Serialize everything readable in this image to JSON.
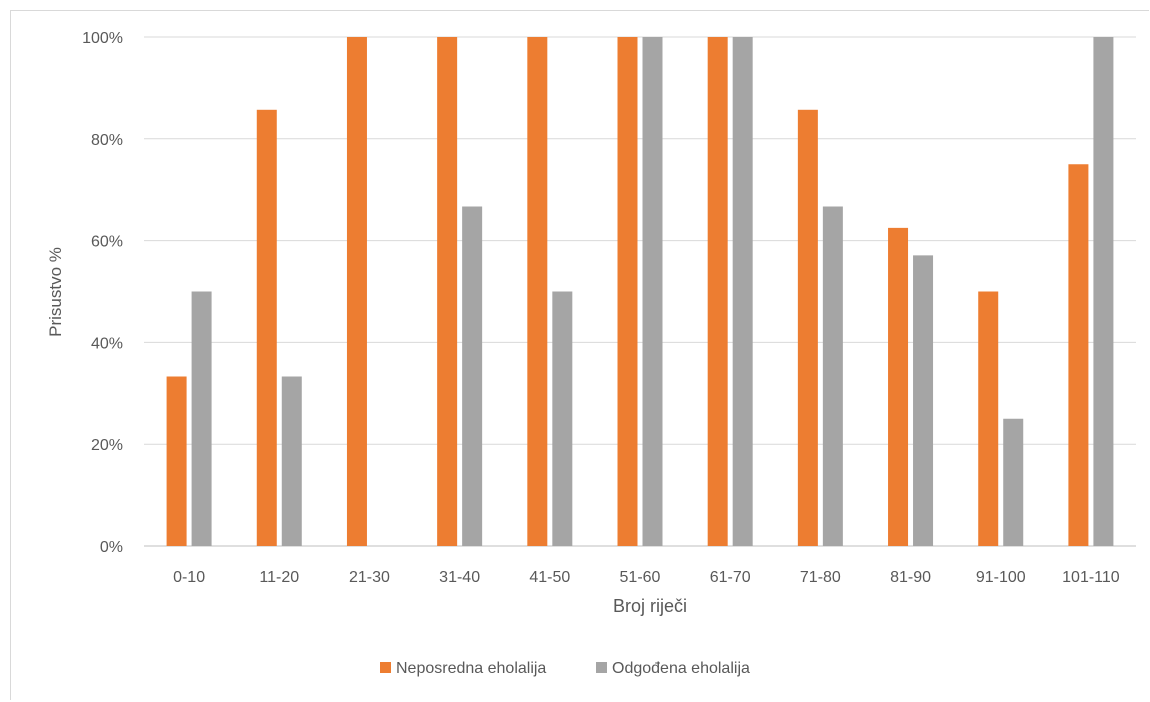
{
  "chart_data": {
    "type": "bar",
    "title": "",
    "xlabel": "Broj riječi",
    "ylabel": "Prisustvo %",
    "ylim": [
      0,
      100
    ],
    "yticks": [
      "0%",
      "20%",
      "40%",
      "60%",
      "80%",
      "100%"
    ],
    "grid": true,
    "legend_position": "bottom",
    "categories": [
      "0-10",
      "11-20",
      "21-30",
      "31-40",
      "41-50",
      "51-60",
      "61-70",
      "71-80",
      "81-90",
      "91-100",
      "101-110"
    ],
    "series": [
      {
        "name": "Neposredna eholalija",
        "color": "#ed7d31",
        "values": [
          33.3,
          85.7,
          100,
          100,
          100,
          100,
          100,
          85.7,
          62.5,
          50,
          75
        ]
      },
      {
        "name": "Odgođena eholalija",
        "color": "#a5a5a5",
        "values": [
          50,
          33.3,
          0,
          66.7,
          50,
          100,
          100,
          66.7,
          57.1,
          25,
          100
        ]
      }
    ]
  }
}
